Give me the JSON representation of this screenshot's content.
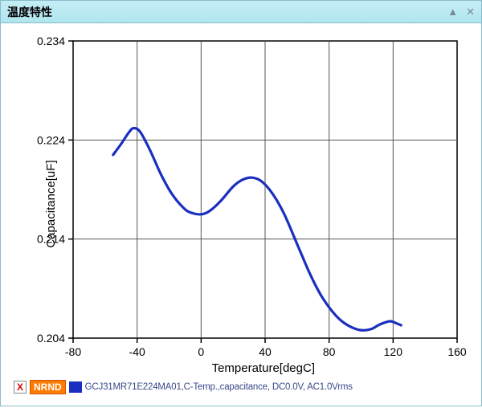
{
  "panel": {
    "title": "温度特性",
    "collapse_icon": "▲",
    "close_icon": "✕"
  },
  "chart": {
    "type": "line",
    "xlabel": "Temperature[degC]",
    "ylabel": "Capacitance[uF]",
    "xlim": [
      -80,
      160
    ],
    "ylim": [
      0.204,
      0.234
    ],
    "xticks": [
      -80,
      -40,
      0,
      40,
      80,
      120,
      160
    ],
    "yticks": [
      0.204,
      0.214,
      0.224,
      0.234
    ],
    "xtick_labels": [
      "-80",
      "-40",
      "0",
      "40",
      "80",
      "120",
      "160"
    ],
    "ytick_labels": [
      "0.204",
      "0.214",
      "0.224",
      "0.234"
    ],
    "grid_color": "#555555",
    "axis_color": "#000000",
    "background_color": "#ffffff",
    "tick_fontsize": 14,
    "label_fontsize": 15,
    "series": [
      {
        "color": "#1a2fbf",
        "line_width": 3.2,
        "points": [
          [
            -55,
            0.2225
          ],
          [
            -50,
            0.2236
          ],
          [
            -45,
            0.2248
          ],
          [
            -42,
            0.2252
          ],
          [
            -38,
            0.2248
          ],
          [
            -32,
            0.223
          ],
          [
            -25,
            0.2205
          ],
          [
            -18,
            0.2185
          ],
          [
            -10,
            0.217
          ],
          [
            -5,
            0.2166
          ],
          [
            0,
            0.2165
          ],
          [
            5,
            0.2168
          ],
          [
            12,
            0.2178
          ],
          [
            20,
            0.2193
          ],
          [
            26,
            0.22
          ],
          [
            32,
            0.2202
          ],
          [
            38,
            0.2198
          ],
          [
            45,
            0.2185
          ],
          [
            52,
            0.2165
          ],
          [
            60,
            0.2135
          ],
          [
            68,
            0.2105
          ],
          [
            75,
            0.2083
          ],
          [
            82,
            0.2067
          ],
          [
            88,
            0.2057
          ],
          [
            94,
            0.2051
          ],
          [
            100,
            0.2048
          ],
          [
            106,
            0.2049
          ],
          [
            112,
            0.2054
          ],
          [
            118,
            0.2057
          ],
          [
            122,
            0.2055
          ],
          [
            125,
            0.2053
          ]
        ]
      }
    ]
  },
  "legend": {
    "checkbox_mark": "X",
    "badge": "NRND",
    "swatch_color": "#1a2fbf",
    "text": "GCJ31MR71E224MA01,C-Temp.,capacitance, DC0.0V, AC1.0Vrms"
  }
}
